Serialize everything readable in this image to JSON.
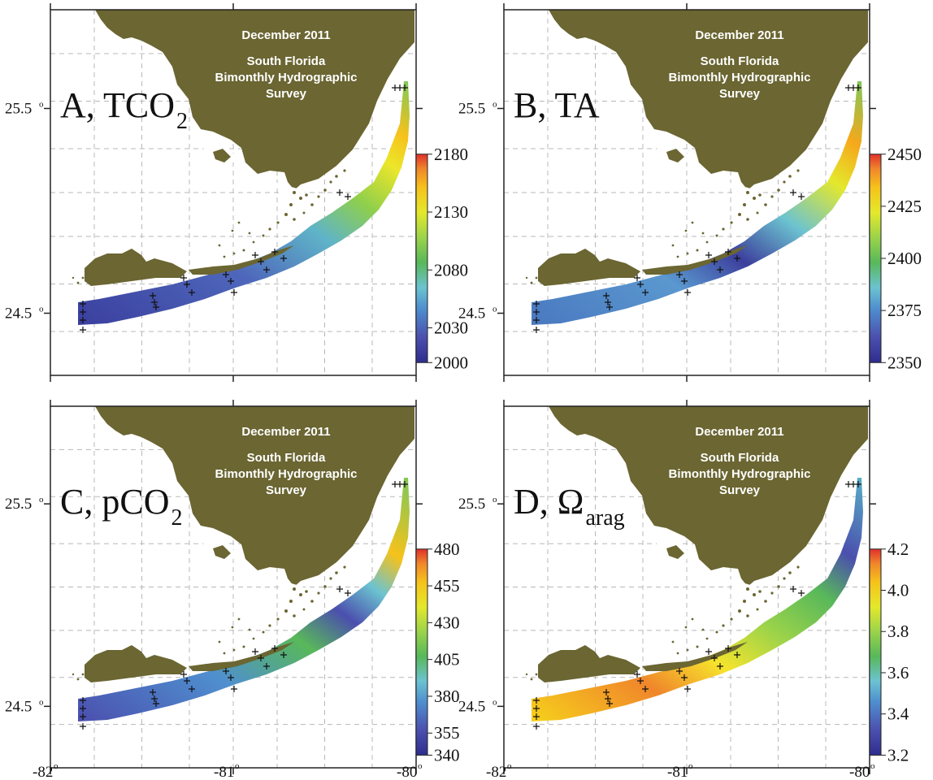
{
  "figure": {
    "survey": {
      "line1": "December 2011",
      "line2": "South Florida",
      "line3": "Bimonthly Hydrographic",
      "line4": "Survey"
    },
    "x_ticks": [
      "-82",
      "-81",
      "-80"
    ],
    "y_ticks": [
      "25.5",
      "24.5"
    ],
    "degree_mark": "o",
    "land_color": "#6b6632",
    "colormap": [
      "#2e2d8e",
      "#4b4fae",
      "#4f8fcf",
      "#6cc3d0",
      "#58b85a",
      "#9bd34a",
      "#e4e82c",
      "#f6c21b",
      "#f0862b",
      "#e0302b"
    ]
  },
  "panels": [
    {
      "id": "A",
      "label": "A, TCO",
      "subscript": "2",
      "colorbar": {
        "ticks": [
          "2180",
          "2130",
          "2080",
          "2030",
          "2000"
        ],
        "min": 2000,
        "max": 2180
      }
    },
    {
      "id": "B",
      "label": "B, TA",
      "subscript": "",
      "colorbar": {
        "ticks": [
          "2450",
          "2425",
          "2400",
          "2375",
          "2350"
        ],
        "min": 2350,
        "max": 2450
      }
    },
    {
      "id": "C",
      "label": "C, pCO",
      "subscript": "2",
      "colorbar": {
        "ticks": [
          "480",
          "455",
          "430",
          "405",
          "380",
          "355",
          "340"
        ],
        "min": 340,
        "max": 480
      }
    },
    {
      "id": "D",
      "label": "D, Ω",
      "subscript": "arag",
      "colorbar": {
        "ticks": [
          "4.2",
          "4.0",
          "3.8",
          "3.6",
          "3.4",
          "3.2"
        ],
        "min": 3.2,
        "max": 4.2
      }
    }
  ]
}
